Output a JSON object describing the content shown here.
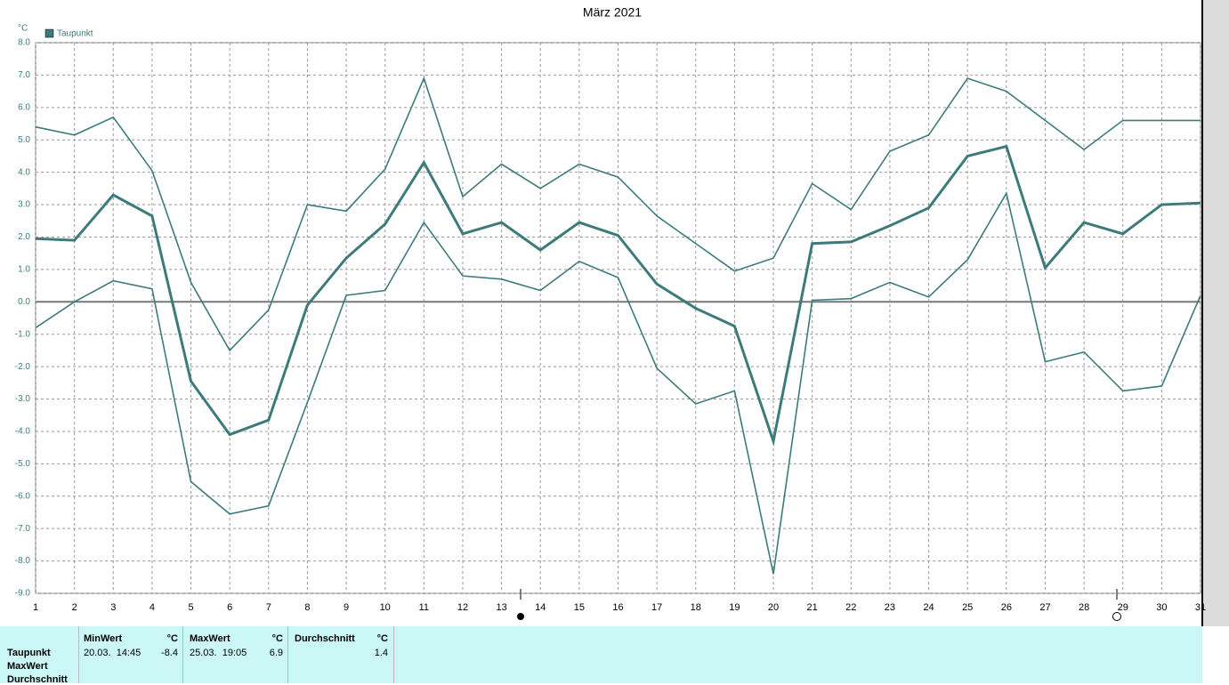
{
  "chart_data": {
    "type": "line",
    "title": "März 2021",
    "y_unit": "°C",
    "x": [
      1,
      2,
      3,
      4,
      5,
      6,
      7,
      8,
      9,
      10,
      11,
      12,
      13,
      14,
      15,
      16,
      17,
      18,
      19,
      20,
      21,
      22,
      23,
      24,
      25,
      26,
      27,
      28,
      29,
      30,
      31
    ],
    "xlim": [
      1,
      31
    ],
    "xticks": [
      1,
      2,
      3,
      4,
      5,
      6,
      7,
      8,
      9,
      10,
      11,
      12,
      13,
      14,
      15,
      16,
      17,
      18,
      19,
      20,
      21,
      22,
      23,
      24,
      25,
      26,
      27,
      28,
      29,
      30,
      31
    ],
    "ylim": [
      -9,
      8
    ],
    "yticks": [
      {
        "value": 8,
        "label": "8.0"
      },
      {
        "value": 7,
        "label": "7.0"
      },
      {
        "value": 6,
        "label": "6.0"
      },
      {
        "value": 5,
        "label": "5.0"
      },
      {
        "value": 4,
        "label": "4.0"
      },
      {
        "value": 3,
        "label": "3.0"
      },
      {
        "value": 2,
        "label": "2.0"
      },
      {
        "value": 1,
        "label": "1.0"
      },
      {
        "value": 0,
        "label": "0.0"
      },
      {
        "value": -1,
        "label": "-1.0"
      },
      {
        "value": -2,
        "label": "-2.0"
      },
      {
        "value": -3,
        "label": "-3.0"
      },
      {
        "value": -4,
        "label": "-4.0"
      },
      {
        "value": -5,
        "label": "-5.0"
      },
      {
        "value": -6,
        "label": "-6.0"
      },
      {
        "value": -7,
        "label": "-7.0"
      },
      {
        "value": -8,
        "label": "-8.0"
      },
      {
        "value": -9,
        "label": "-9.0"
      }
    ],
    "grid": true,
    "legend": "top-left",
    "series": [
      {
        "name": "Taupunkt",
        "color": "#3d7b7b",
        "values": [
          1.95,
          1.9,
          3.3,
          2.65,
          -2.45,
          -4.1,
          -3.65,
          -0.1,
          1.35,
          2.4,
          4.3,
          2.1,
          2.45,
          1.6,
          2.45,
          2.05,
          0.55,
          -0.2,
          -0.75,
          -4.3,
          1.8,
          1.85,
          2.35,
          2.9,
          4.5,
          4.8,
          1.05,
          2.45,
          2.1,
          3.0,
          3.05
        ]
      },
      {
        "color": "#3d7b7b",
        "values": [
          5.4,
          5.15,
          5.7,
          4.05,
          0.6,
          -1.5,
          -0.25,
          3.0,
          2.8,
          4.1,
          6.9,
          3.25,
          4.25,
          3.5,
          4.25,
          3.85,
          2.65,
          1.8,
          0.95,
          1.35,
          3.65,
          2.85,
          4.65,
          5.15,
          6.9,
          6.5,
          5.6,
          4.7,
          5.6,
          5.6,
          5.6
        ]
      },
      {
        "color": "#3d7b7b",
        "values": [
          -0.8,
          0.0,
          0.65,
          0.4,
          -5.55,
          -6.55,
          -6.3,
          -3.1,
          0.2,
          0.35,
          2.45,
          0.8,
          0.7,
          0.35,
          1.25,
          0.75,
          -2.05,
          -3.15,
          -2.75,
          -8.4,
          0.05,
          0.1,
          0.6,
          0.15,
          1.3,
          3.35,
          -1.85,
          -1.55,
          -2.75,
          -2.6,
          0.2
        ]
      }
    ]
  },
  "stats": {
    "row_labels": [
      "Taupunkt",
      "MaxWert",
      "Durchschnitt"
    ],
    "columns": [
      {
        "header": "MinWert",
        "unit": "°C",
        "time": "20.03.  14:45",
        "value": -8.4
      },
      {
        "header": "MaxWert",
        "unit": "°C",
        "time": "25.03.  19:05",
        "value": 6.9
      },
      {
        "header": "Durchschnitt",
        "unit": "°C",
        "value": 1.4
      }
    ]
  }
}
